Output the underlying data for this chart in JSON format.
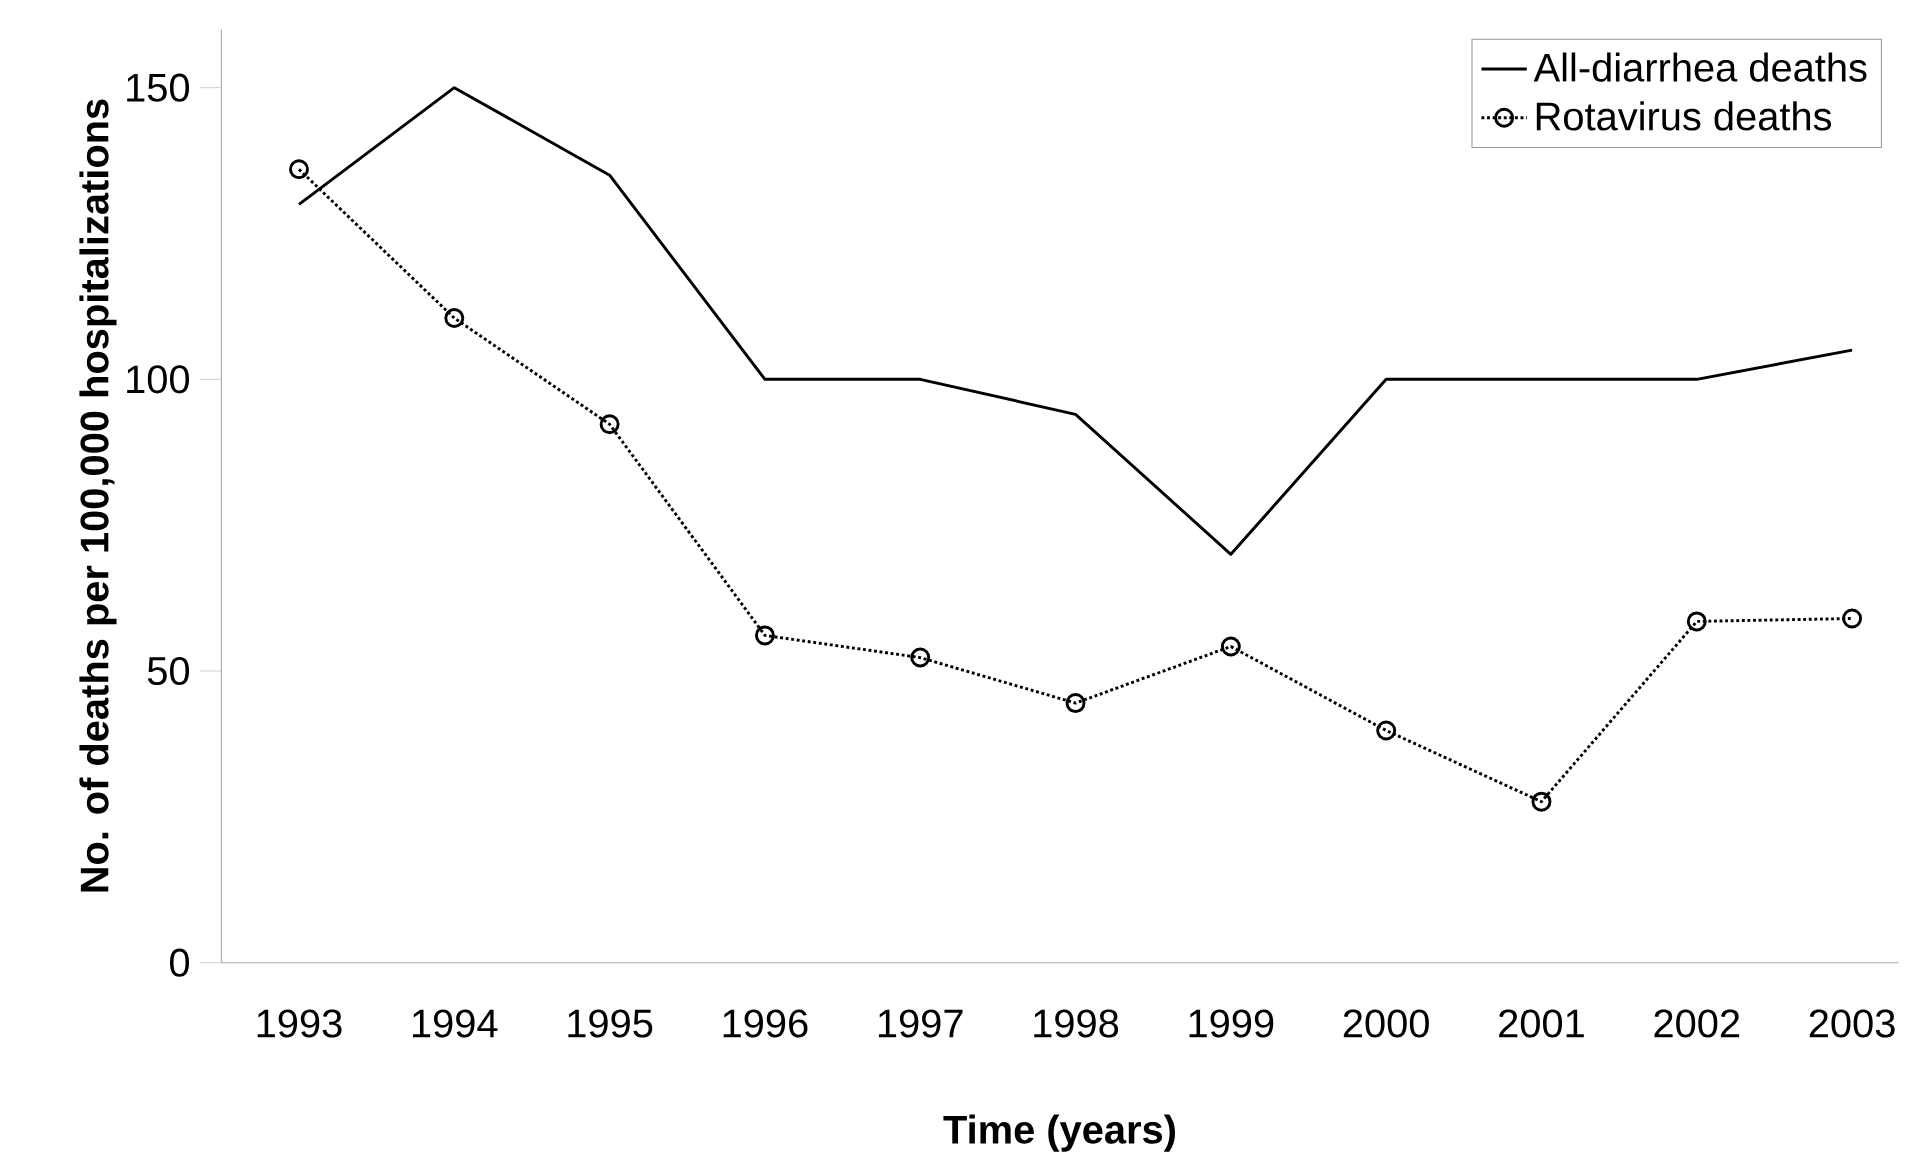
{
  "chart_data": {
    "type": "line",
    "xlabel": "Time (years)",
    "ylabel": "No. of deaths per 100,000 hospitalizations",
    "categories": [
      "1993",
      "1994",
      "1995",
      "1996",
      "1997",
      "1998",
      "1999",
      "2000",
      "2001",
      "2002",
      "2003"
    ],
    "series": [
      {
        "name": "All-diarrhea deaths",
        "color": "#000000",
        "line_style": "solid",
        "marker": "none",
        "values": [
          130,
          150,
          135,
          100,
          100,
          94,
          70,
          100,
          100,
          100,
          105
        ]
      },
      {
        "name": "Rotavirus deaths",
        "color": "#000000",
        "line_style": "dotted",
        "marker": "circle",
        "values": [
          136,
          110.5,
          92.3,
          56.1,
          52.3,
          44.5,
          54.2,
          39.8,
          27.6,
          58.5,
          59
        ]
      }
    ],
    "ylim": [
      0,
      160
    ],
    "yticks": [
      0,
      50,
      100,
      150
    ],
    "grid": false,
    "legend": "top right"
  }
}
